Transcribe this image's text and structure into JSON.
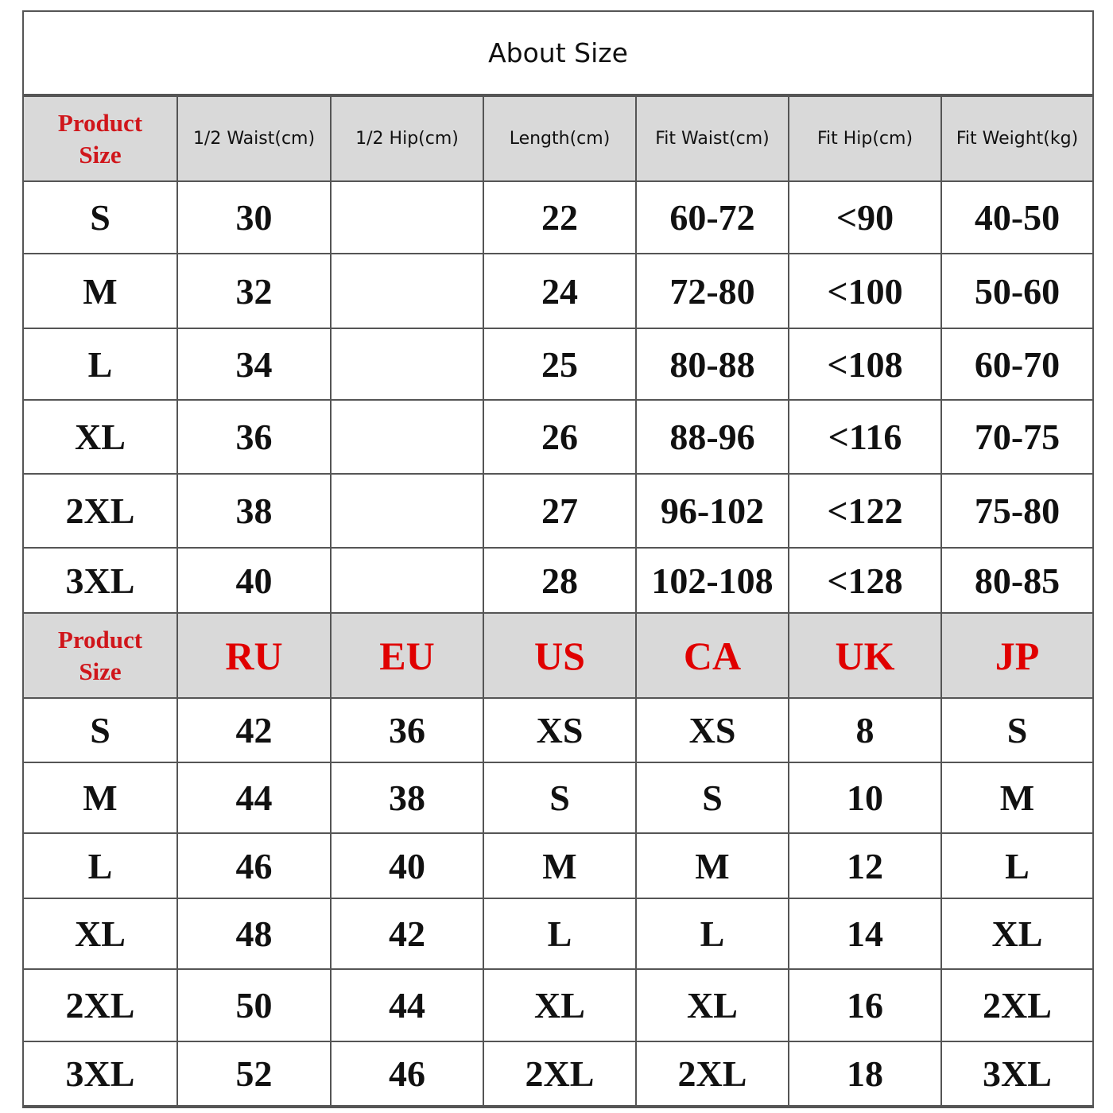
{
  "title": "About Size",
  "colors": {
    "header_bg": "#d9d9d9",
    "accent_red": "#e00000",
    "border": "#555555"
  },
  "measurements": {
    "headers": [
      "Product Size",
      "1/2 Waist(cm)",
      "1/2 Hip(cm)",
      "Length(cm)",
      "Fit Waist(cm)",
      "Fit Hip(cm)",
      "Fit Weight(kg)"
    ],
    "rows": [
      [
        "S",
        "30",
        "",
        "22",
        "60-72",
        "<90",
        "40-50"
      ],
      [
        "M",
        "32",
        "",
        "24",
        "72-80",
        "<100",
        "50-60"
      ],
      [
        "L",
        "34",
        "",
        "25",
        "80-88",
        "<108",
        "60-70"
      ],
      [
        "XL",
        "36",
        "",
        "26",
        "88-96",
        "<116",
        "70-75"
      ],
      [
        "2XL",
        "38",
        "",
        "27",
        "96-102",
        "<122",
        "75-80"
      ],
      [
        "3XL",
        "40",
        "",
        "28",
        "102-108",
        "<128",
        "80-85"
      ]
    ]
  },
  "conversion": {
    "headers": [
      "Product Size",
      "RU",
      "EU",
      "US",
      "CA",
      "UK",
      "JP"
    ],
    "rows": [
      [
        "S",
        "42",
        "36",
        "XS",
        "XS",
        "8",
        "S"
      ],
      [
        "M",
        "44",
        "38",
        "S",
        "S",
        "10",
        "M"
      ],
      [
        "L",
        "46",
        "40",
        "M",
        "M",
        "12",
        "L"
      ],
      [
        "XL",
        "48",
        "42",
        "L",
        "L",
        "14",
        "XL"
      ],
      [
        "2XL",
        "50",
        "44",
        "XL",
        "XL",
        "16",
        "2XL"
      ],
      [
        "3XL",
        "52",
        "46",
        "2XL",
        "2XL",
        "18",
        "3XL"
      ]
    ]
  }
}
